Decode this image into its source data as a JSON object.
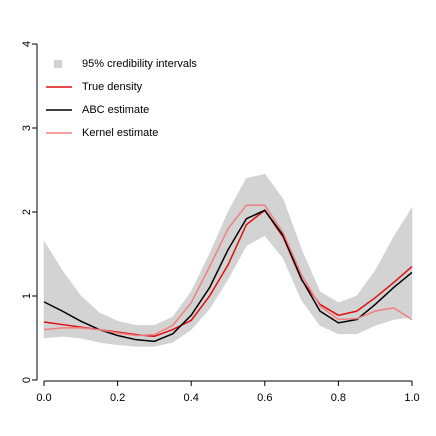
{
  "chart_data": {
    "type": "line",
    "x": [
      0,
      0.05,
      0.1,
      0.15,
      0.2,
      0.25,
      0.3,
      0.35,
      0.4,
      0.45,
      0.5,
      0.55,
      0.6,
      0.65,
      0.7,
      0.75,
      0.8,
      0.85,
      0.9,
      0.95,
      1
    ],
    "xlim": [
      0,
      1
    ],
    "ylim": [
      0,
      4
    ],
    "xticks": [
      {
        "value": 0,
        "label": "0.0"
      },
      0.2,
      0.4,
      0.6,
      0.8,
      {
        "value": 1,
        "label": "1.0"
      }
    ],
    "yticks": [
      0,
      1,
      2,
      3,
      4
    ],
    "series": [
      {
        "name": "95% credibility intervals",
        "color": "#d3d3d3",
        "lower": [
          0.5,
          0.52,
          0.5,
          0.45,
          0.42,
          0.4,
          0.4,
          0.45,
          0.6,
          0.85,
          1.2,
          1.6,
          1.72,
          1.45,
          0.95,
          0.65,
          0.55,
          0.55,
          0.65,
          0.72,
          0.75
        ],
        "upper": [
          1.65,
          1.3,
          1.0,
          0.8,
          0.7,
          0.65,
          0.65,
          0.75,
          1.05,
          1.5,
          2.0,
          2.4,
          2.45,
          2.15,
          1.55,
          1.05,
          0.92,
          1.0,
          1.3,
          1.7,
          2.05
        ]
      },
      {
        "name": "True density",
        "color": "#dd1111",
        "values": [
          0.69,
          0.66,
          0.63,
          0.6,
          0.57,
          0.54,
          0.52,
          0.6,
          0.71,
          1.0,
          1.37,
          1.85,
          2.02,
          1.7,
          1.19,
          0.9,
          0.77,
          0.82,
          0.98,
          1.16,
          1.35
        ]
      },
      {
        "name": "ABC estimate",
        "color": "#000000",
        "values": [
          0.93,
          0.82,
          0.7,
          0.6,
          0.53,
          0.48,
          0.46,
          0.55,
          0.77,
          1.1,
          1.55,
          1.92,
          2.02,
          1.72,
          1.2,
          0.82,
          0.68,
          0.72,
          0.9,
          1.1,
          1.28
        ]
      },
      {
        "name": "Kernel estimate",
        "color": "#f08080",
        "values": [
          0.6,
          0.62,
          0.62,
          0.6,
          0.56,
          0.53,
          0.54,
          0.65,
          0.92,
          1.35,
          1.8,
          2.08,
          2.08,
          1.75,
          1.25,
          0.88,
          0.72,
          0.73,
          0.82,
          0.86,
          0.72
        ]
      }
    ]
  }
}
